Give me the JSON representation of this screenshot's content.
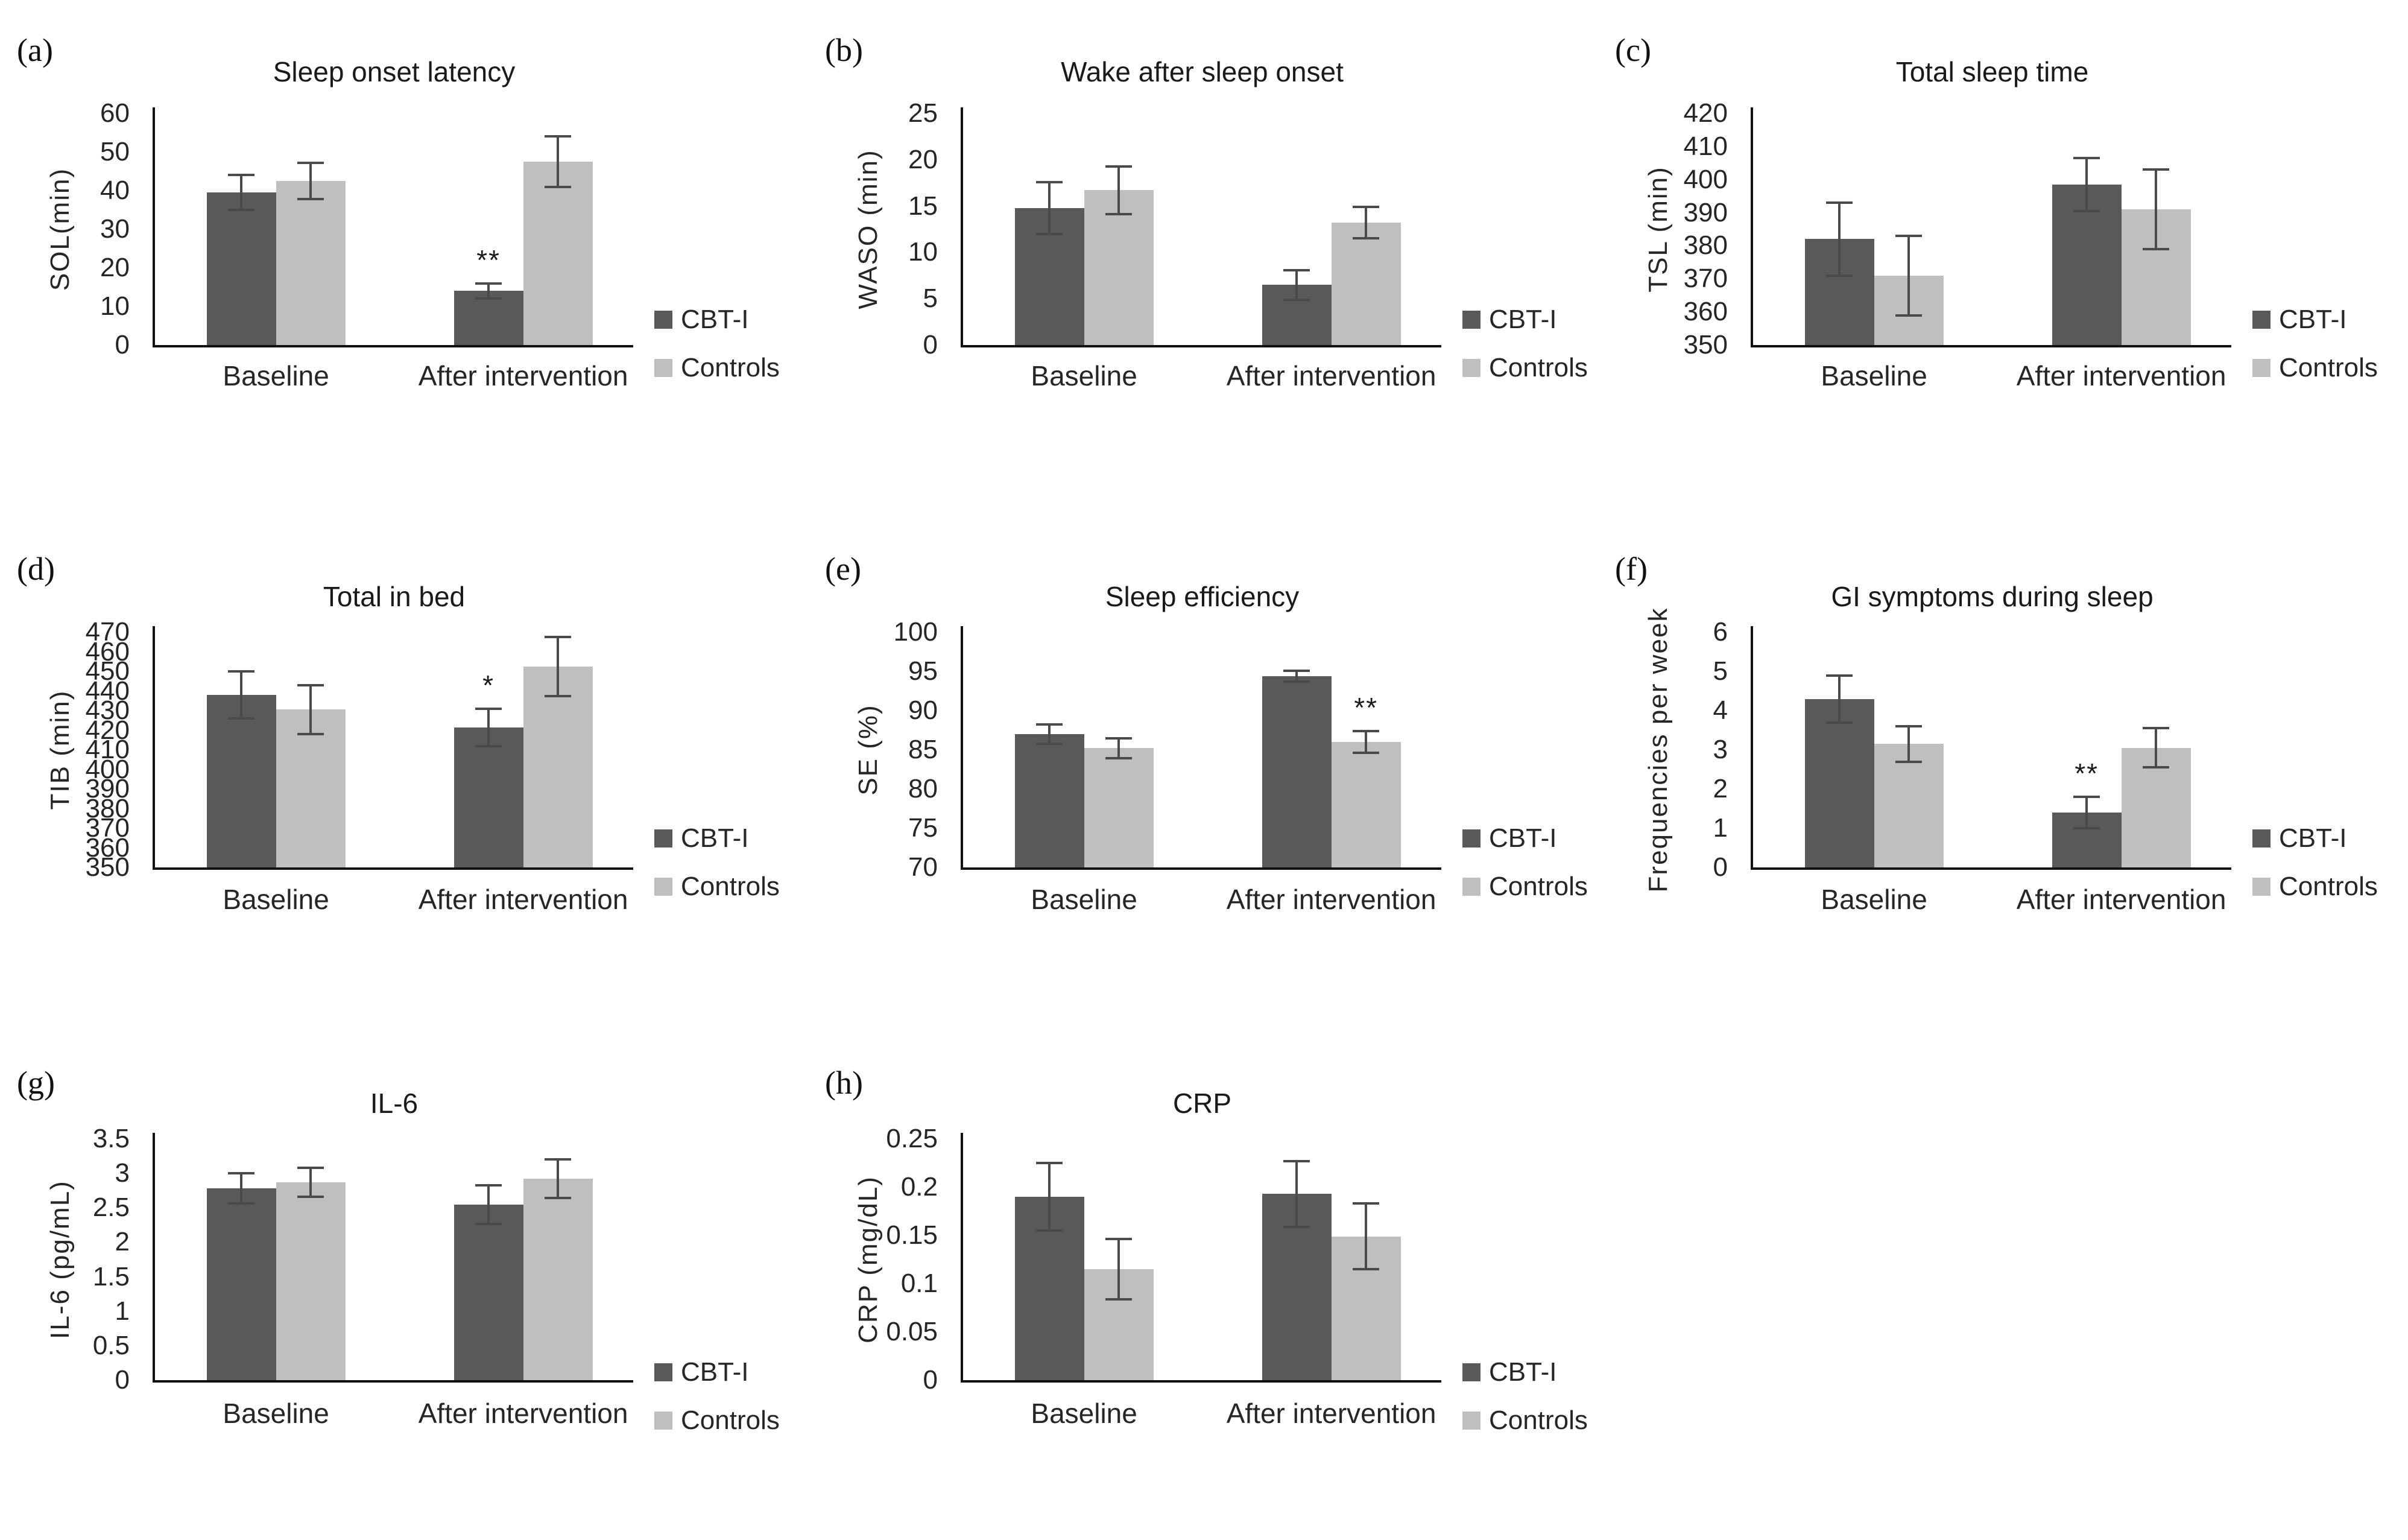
{
  "legend": {
    "items": [
      {
        "label": "CBT-I",
        "color": "#595959"
      },
      {
        "label": "Controls",
        "color": "#bfbfbf"
      }
    ]
  },
  "categories": [
    "Baseline",
    "After intervention"
  ],
  "error_bar_color": "#4a4a4a",
  "axis_color": "#111111",
  "chart_data": [
    {
      "type": "bar",
      "panel": "(a)",
      "title": "Sleep onset latency",
      "ylabel": "SOL(min)",
      "ymin": 0,
      "ymax": 60,
      "ticks": [
        "0",
        "10",
        "20",
        "30",
        "40",
        "50",
        "60"
      ],
      "categories": [
        "Baseline",
        "After intervention"
      ],
      "series": [
        {
          "name": "CBT-I",
          "values": [
            39.5,
            14
          ],
          "errors": [
            4.5,
            2
          ],
          "sig": [
            "",
            "**"
          ]
        },
        {
          "name": "Controls",
          "values": [
            42.5,
            47.5
          ],
          "errors": [
            4.7,
            6.5
          ],
          "sig": [
            "",
            ""
          ]
        }
      ]
    },
    {
      "type": "bar",
      "panel": "(b)",
      "title": "Wake after sleep onset",
      "ylabel": "WASO (min)",
      "ymin": 0,
      "ymax": 25,
      "ticks": [
        "0",
        "5",
        "10",
        "15",
        "20",
        "25"
      ],
      "categories": [
        "Baseline",
        "After intervention"
      ],
      "series": [
        {
          "name": "CBT-I",
          "values": [
            14.8,
            6.5
          ],
          "errors": [
            2.8,
            1.6
          ],
          "sig": [
            "",
            ""
          ]
        },
        {
          "name": "Controls",
          "values": [
            16.7,
            13.2
          ],
          "errors": [
            2.6,
            1.7
          ],
          "sig": [
            "",
            ""
          ]
        }
      ]
    },
    {
      "type": "bar",
      "panel": "(c)",
      "title": "Total sleep time",
      "ylabel": "TSL (min)",
      "ymin": 350,
      "ymax": 420,
      "ticks": [
        "350",
        "360",
        "370",
        "380",
        "390",
        "400",
        "410",
        "420"
      ],
      "categories": [
        "Baseline",
        "After intervention"
      ],
      "series": [
        {
          "name": "CBT-I",
          "values": [
            382,
            398.5
          ],
          "errors": [
            11,
            8
          ],
          "sig": [
            "",
            ""
          ]
        },
        {
          "name": "Controls",
          "values": [
            371,
            391
          ],
          "errors": [
            12,
            12
          ],
          "sig": [
            "",
            ""
          ]
        }
      ]
    },
    {
      "type": "bar",
      "panel": "(d)",
      "title": "Total in bed",
      "ylabel": "TIB (min)",
      "ymin": 350,
      "ymax": 470,
      "ticks": [
        "350",
        "360",
        "370",
        "380",
        "390",
        "400",
        "410",
        "420",
        "430",
        "440",
        "450",
        "460",
        "470"
      ],
      "categories": [
        "Baseline",
        "After intervention"
      ],
      "series": [
        {
          "name": "CBT-I",
          "values": [
            438,
            421.5
          ],
          "errors": [
            12,
            9.5
          ],
          "sig": [
            "",
            "*"
          ]
        },
        {
          "name": "Controls",
          "values": [
            430.5,
            452.5
          ],
          "errors": [
            12.5,
            15
          ],
          "sig": [
            "",
            ""
          ]
        }
      ]
    },
    {
      "type": "bar",
      "panel": "(e)",
      "title": "Sleep efficiency",
      "ylabel": "SE (%)",
      "ymin": 70,
      "ymax": 100,
      "ticks": [
        "70",
        "75",
        "80",
        "85",
        "90",
        "95",
        "100"
      ],
      "categories": [
        "Baseline",
        "After intervention"
      ],
      "series": [
        {
          "name": "CBT-I",
          "values": [
            87,
            94.4
          ],
          "errors": [
            1.2,
            0.7
          ],
          "sig": [
            "",
            ""
          ]
        },
        {
          "name": "Controls",
          "values": [
            85.2,
            86
          ],
          "errors": [
            1.3,
            1.4
          ],
          "sig": [
            "",
            "**"
          ]
        }
      ]
    },
    {
      "type": "bar",
      "panel": "(f)",
      "title": "GI symptoms during sleep",
      "ylabel": "Frequencies per week",
      "ymin": 0,
      "ymax": 6,
      "ticks": [
        "0",
        "1",
        "2",
        "3",
        "4",
        "5",
        "6"
      ],
      "categories": [
        "Baseline",
        "After intervention"
      ],
      "series": [
        {
          "name": "CBT-I",
          "values": [
            4.3,
            1.4
          ],
          "errors": [
            0.6,
            0.4
          ],
          "sig": [
            "",
            "**"
          ]
        },
        {
          "name": "Controls",
          "values": [
            3.15,
            3.05
          ],
          "errors": [
            0.45,
            0.5
          ],
          "sig": [
            "",
            ""
          ]
        }
      ]
    },
    {
      "type": "bar",
      "panel": "(g)",
      "title": "IL-6",
      "ylabel": "IL-6 (pg/mL)",
      "ymin": 0,
      "ymax": 3.5,
      "ticks": [
        "0",
        "0.5",
        "1",
        "1.5",
        "2",
        "2.5",
        "3",
        "3.5"
      ],
      "categories": [
        "Baseline",
        "After intervention"
      ],
      "series": [
        {
          "name": "CBT-I",
          "values": [
            2.78,
            2.55
          ],
          "errors": [
            0.22,
            0.28
          ],
          "sig": [
            "",
            ""
          ]
        },
        {
          "name": "Controls",
          "values": [
            2.87,
            2.92
          ],
          "errors": [
            0.21,
            0.28
          ],
          "sig": [
            "",
            ""
          ]
        }
      ]
    },
    {
      "type": "bar",
      "panel": "(h)",
      "title": "CRP",
      "ylabel": "CRP (mg/dL)",
      "ymin": 0,
      "ymax": 0.25,
      "ticks": [
        "0",
        "0.05",
        "0.1",
        "0.15",
        "0.2",
        "0.25"
      ],
      "categories": [
        "Baseline",
        "After intervention"
      ],
      "series": [
        {
          "name": "CBT-I",
          "values": [
            0.19,
            0.193
          ],
          "errors": [
            0.035,
            0.034
          ],
          "sig": [
            "",
            ""
          ]
        },
        {
          "name": "Controls",
          "values": [
            0.115,
            0.149
          ],
          "errors": [
            0.031,
            0.034
          ],
          "sig": [
            "",
            ""
          ]
        }
      ]
    }
  ]
}
